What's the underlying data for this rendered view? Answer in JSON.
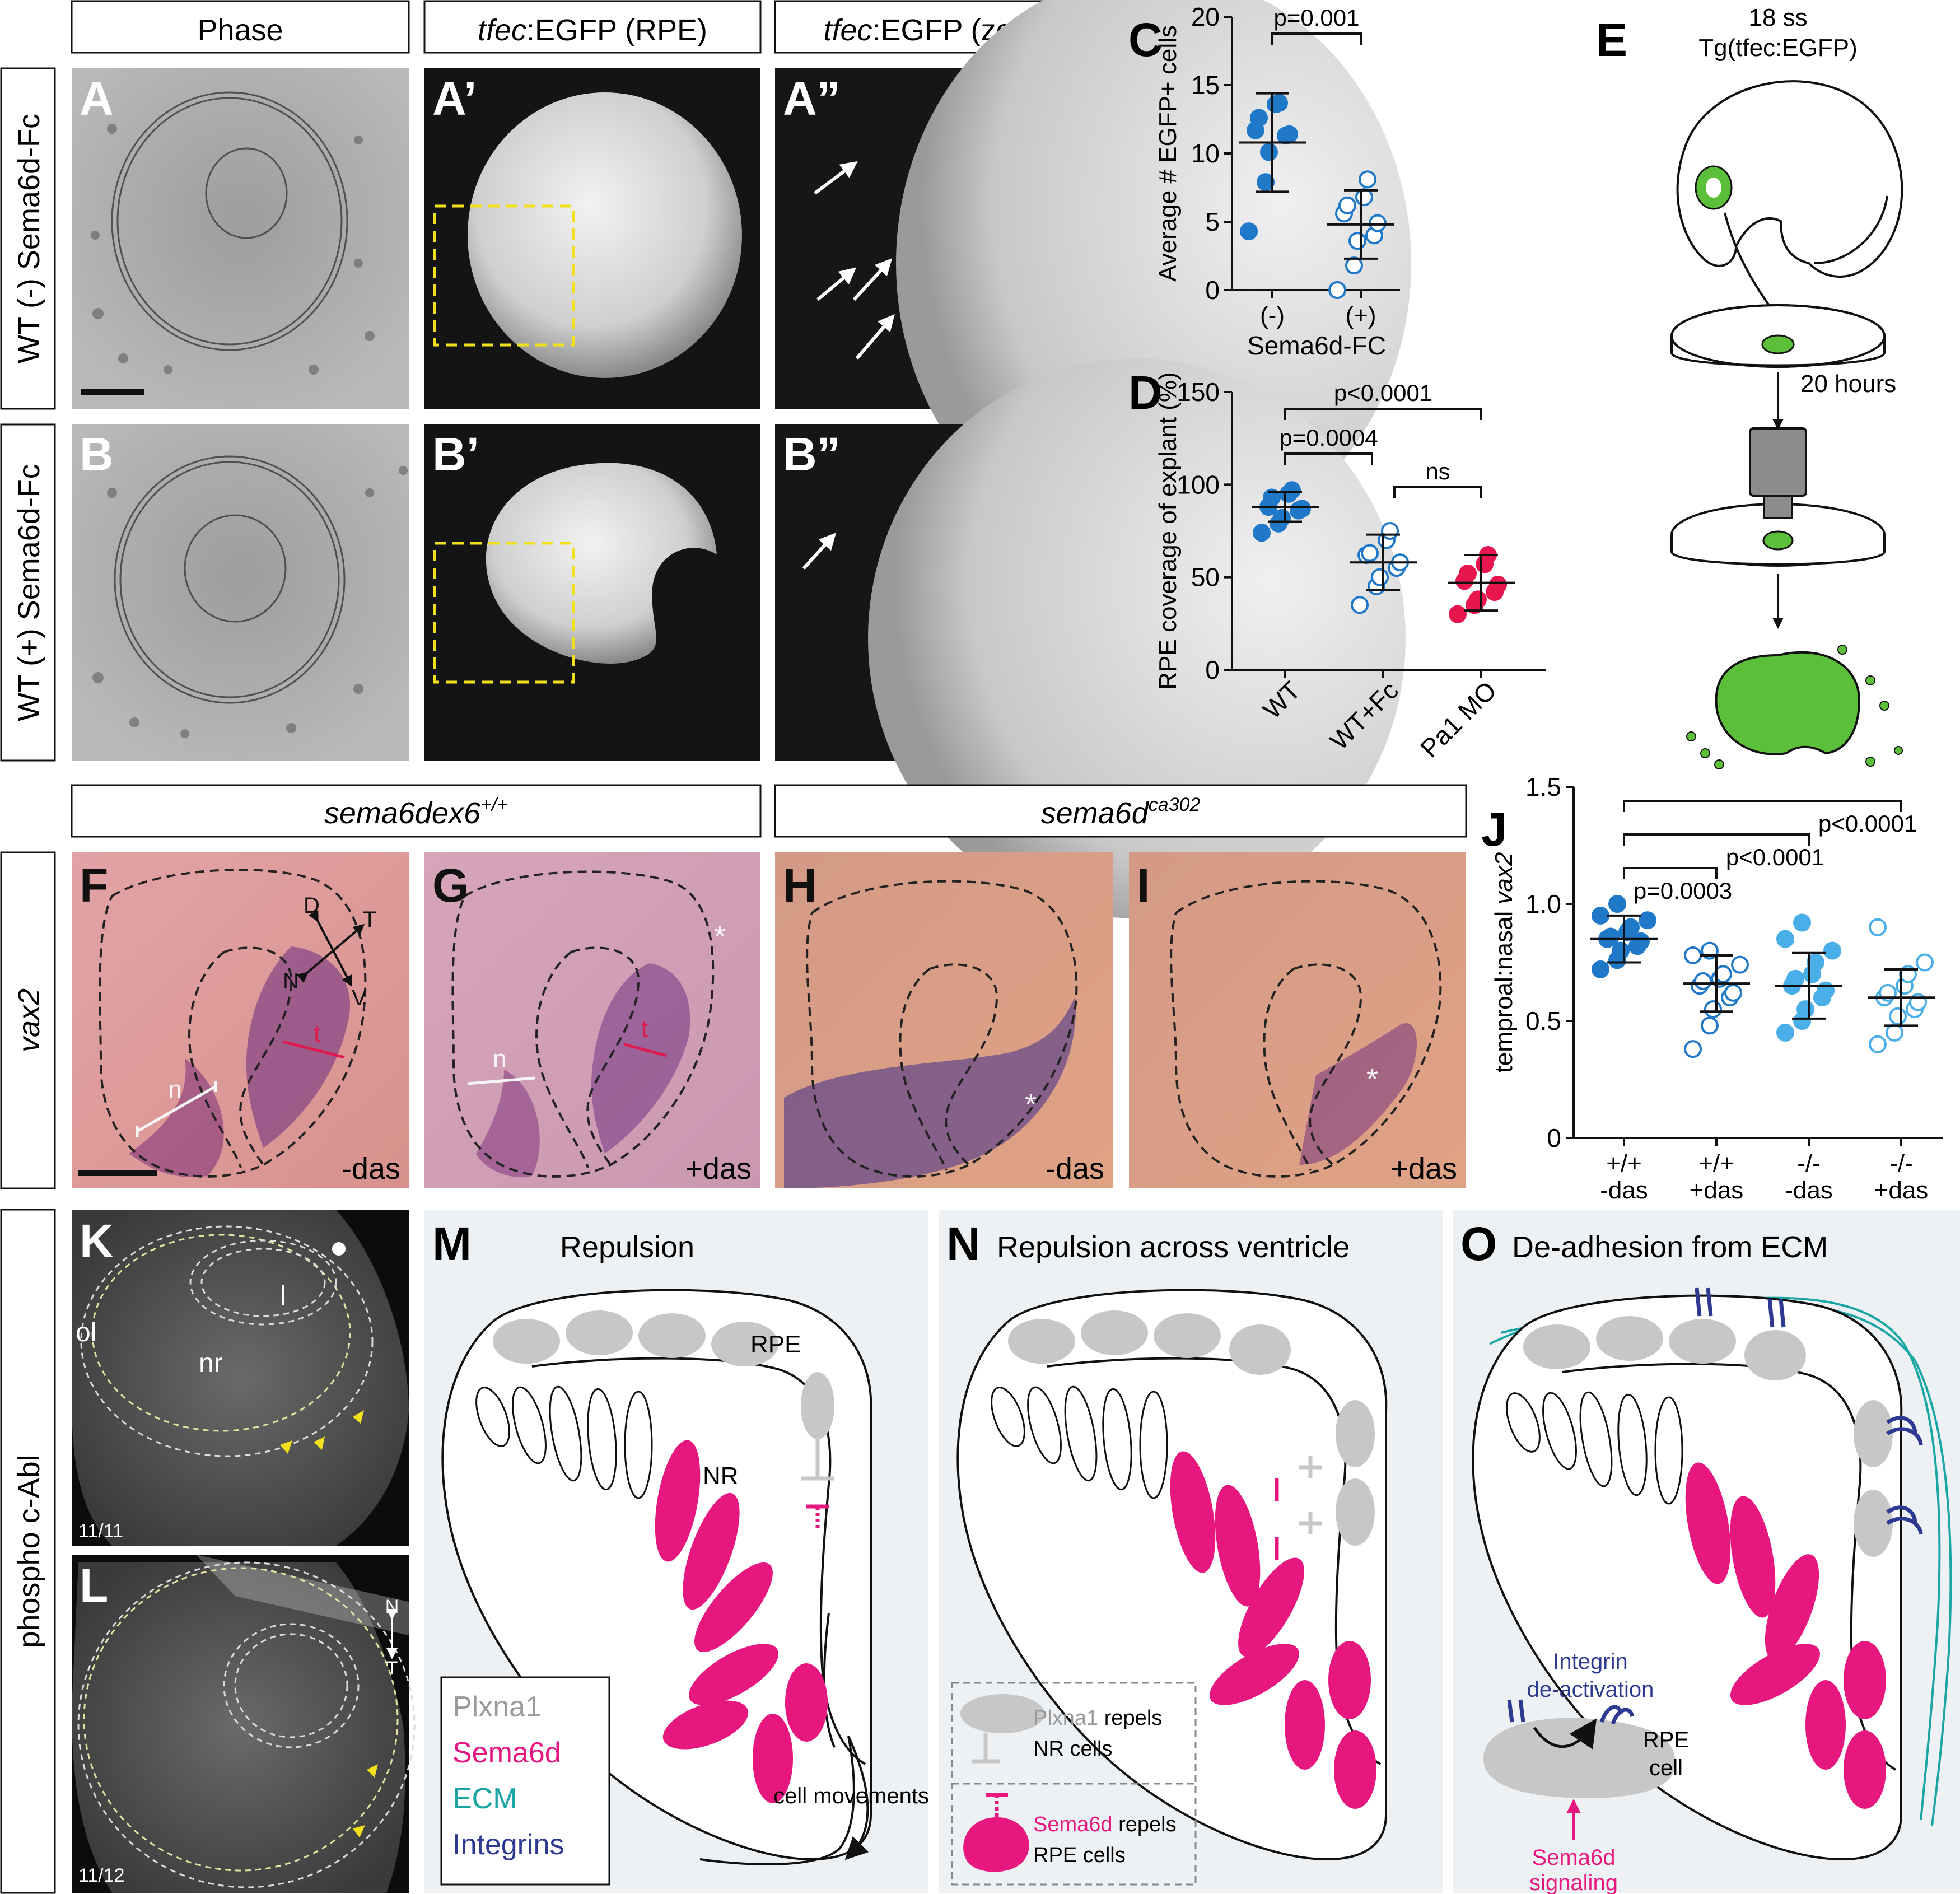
{
  "headers_top": [
    "Phase",
    "tfec",
    ":EGFP (RPE)",
    "tfec",
    ":EGFP (zoom)"
  ],
  "row_labels": {
    "A": "WT (-) Sema6d-Fc",
    "B": "WT (+) Sema6d-Fc",
    "F": "vax2",
    "K": "phospho c-Abl"
  },
  "panel_letters": {
    "A": "A",
    "A1": "A’",
    "A2": "A”",
    "B": "B",
    "B1": "B’",
    "B2": "B”",
    "C": "C",
    "D": "D",
    "E": "E",
    "F": "F",
    "G": "G",
    "H": "H",
    "I": "I",
    "J": "J",
    "K": "K",
    "L": "L",
    "M": "M",
    "N": "N",
    "O": "O"
  },
  "genotypes": {
    "wt_main": "sema6dex6",
    "wt_sup": "+/+",
    "mut_main": "sema6d",
    "mut_sup": "ca302"
  },
  "vax_panels": {
    "F_treat": "-das",
    "G_treat": "+das",
    "H_treat": "-das",
    "I_treat": "+das",
    "n": "n",
    "t": "t",
    "D": "D",
    "T": "T",
    "N": "N",
    "V": "V",
    "star": "*"
  },
  "panel_E": {
    "stage": "18 ss",
    "line": "Tg(tfec:EGFP)",
    "time": "20 hours"
  },
  "panel_K": {
    "ol": "ol",
    "l": "l",
    "nr": "nr",
    "count": "11/11"
  },
  "panel_L": {
    "count": "11/12",
    "N": "N",
    "T": "T"
  },
  "chart_data": [
    {
      "type": "scatter",
      "panel": "C",
      "ylabel": "Average # EGFP+ cells",
      "xlabel": "Sema6d-FC",
      "categories": [
        "(-)",
        "(+)"
      ],
      "ylim": [
        0,
        20
      ],
      "yticks": [
        "0",
        "5",
        "10",
        "15",
        "20"
      ],
      "series": [
        {
          "values": [
            4.3,
            7.9,
            10.1,
            11.3,
            11.4,
            11.7,
            12.6,
            13.6,
            13.7
          ],
          "mean": 10.8,
          "sd": 3.6,
          "fill": "#1f78c8",
          "stroke": "#1f78c8"
        },
        {
          "values": [
            0.0,
            1.8,
            3.6,
            4.0,
            4.9,
            5.6,
            6.2,
            6.8,
            8.1
          ],
          "mean": 4.8,
          "sd": 2.5,
          "fill": "#ffffff",
          "stroke": "#1f78c8"
        }
      ],
      "comparisons": [
        {
          "label": "p=0.001",
          "from": 0,
          "to": 1
        }
      ]
    },
    {
      "type": "scatter",
      "panel": "D",
      "ylabel": "RPE coverage of explant (%)",
      "categories": [
        "WT",
        "WT+Fc",
        "Pa1 MO"
      ],
      "ylim": [
        0,
        150
      ],
      "yticks": [
        "0",
        "50",
        "100",
        "150"
      ],
      "series": [
        {
          "values": [
            74,
            79,
            82,
            86,
            87,
            88,
            93,
            95,
            97
          ],
          "mean": 88,
          "sd": 8,
          "fill": "#1f78c8",
          "stroke": "#1f78c8"
        },
        {
          "values": [
            35,
            45,
            50,
            55,
            58,
            62,
            63,
            70,
            75
          ],
          "mean": 58,
          "sd": 15,
          "fill": "#ffffff",
          "stroke": "#1f78c8"
        },
        {
          "values": [
            30,
            35,
            38,
            42,
            46,
            48,
            52,
            57,
            62
          ],
          "mean": 47,
          "sd": 15,
          "fill": "#e8164f",
          "stroke": "#e8164f"
        }
      ],
      "comparisons": [
        {
          "label": "p<0.0001",
          "from": 0,
          "to": 2
        },
        {
          "label": "p=0.0004",
          "from": 0,
          "to": 1
        },
        {
          "label": "ns",
          "from": 1,
          "to": 2
        }
      ]
    },
    {
      "type": "scatter",
      "panel": "J",
      "ylabel": "temproal:nasal vax2",
      "categories": [
        "+/+\n-das",
        "+/+\n+das",
        "-/-\n-das",
        "-/-\n+das"
      ],
      "ylim": [
        0,
        1.5
      ],
      "yticks": [
        "0",
        "0.5",
        "1.0",
        "1.5"
      ],
      "series": [
        {
          "values": [
            0.72,
            0.76,
            0.8,
            0.82,
            0.84,
            0.85,
            0.86,
            0.88,
            0.9,
            0.93,
            0.95,
            1.0
          ],
          "mean": 0.85,
          "sd": 0.1,
          "fill": "#1f78c8",
          "stroke": "#1f78c8"
        },
        {
          "values": [
            0.38,
            0.48,
            0.55,
            0.6,
            0.62,
            0.65,
            0.67,
            0.68,
            0.7,
            0.74,
            0.78,
            0.8
          ],
          "mean": 0.66,
          "sd": 0.12,
          "fill": "#ffffff",
          "stroke": "#1f78c8"
        },
        {
          "values": [
            0.45,
            0.5,
            0.55,
            0.6,
            0.63,
            0.65,
            0.68,
            0.7,
            0.75,
            0.8,
            0.85,
            0.92
          ],
          "mean": 0.65,
          "sd": 0.14,
          "fill": "#4aaee8",
          "stroke": "#4aaee8"
        },
        {
          "values": [
            0.4,
            0.45,
            0.52,
            0.55,
            0.58,
            0.6,
            0.62,
            0.65,
            0.7,
            0.75,
            0.9
          ],
          "mean": 0.6,
          "sd": 0.12,
          "fill": "#ffffff",
          "stroke": "#4aaee8"
        }
      ],
      "comparisons": [
        {
          "label": "p<0.0001",
          "from": 0,
          "to": 3
        },
        {
          "label": "p<0.0001",
          "from": 0,
          "to": 2
        },
        {
          "label": "p=0.0003",
          "from": 0,
          "to": 1
        }
      ]
    }
  ],
  "panel_M": {
    "title": "Repulsion",
    "rpe": "RPE",
    "nr": "NR",
    "movement": "cell movements"
  },
  "panel_N": {
    "title": "Repulsion across ventricle",
    "box1_colored": "Plxna1",
    "box1_rest1": " repels",
    "box1_rest2": "NR cells",
    "box2_colored": "Sema6d",
    "box2_rest1": " repels",
    "box2_rest2": "RPE cells"
  },
  "panel_O": {
    "title": "De-adhesion from ECM",
    "integrin_l1": "Integrin",
    "integrin_l2": "de-activation",
    "rpe_l1": "RPE",
    "rpe_l2": "cell",
    "sig_l1": "Sema6d",
    "sig_l2": "signaling"
  },
  "legend": [
    {
      "label": "Plxna1",
      "color": "#9a9a9a"
    },
    {
      "label": "Sema6d",
      "color": "#e6177f"
    },
    {
      "label": "ECM",
      "color": "#1aa5a5"
    },
    {
      "label": "Integrins",
      "color": "#2e3a92"
    }
  ],
  "colors": {
    "wt_filled": "#1f78c8",
    "mo": "#e8164f",
    "mut": "#4aaee8",
    "sema6d": "#e6177f",
    "plxna1": "#c7c7c7",
    "ecm": "#1aa5a5",
    "integrin": "#2e3a92",
    "egfp": "#5cbf3a",
    "schematic_bg": "#eef1f4"
  }
}
